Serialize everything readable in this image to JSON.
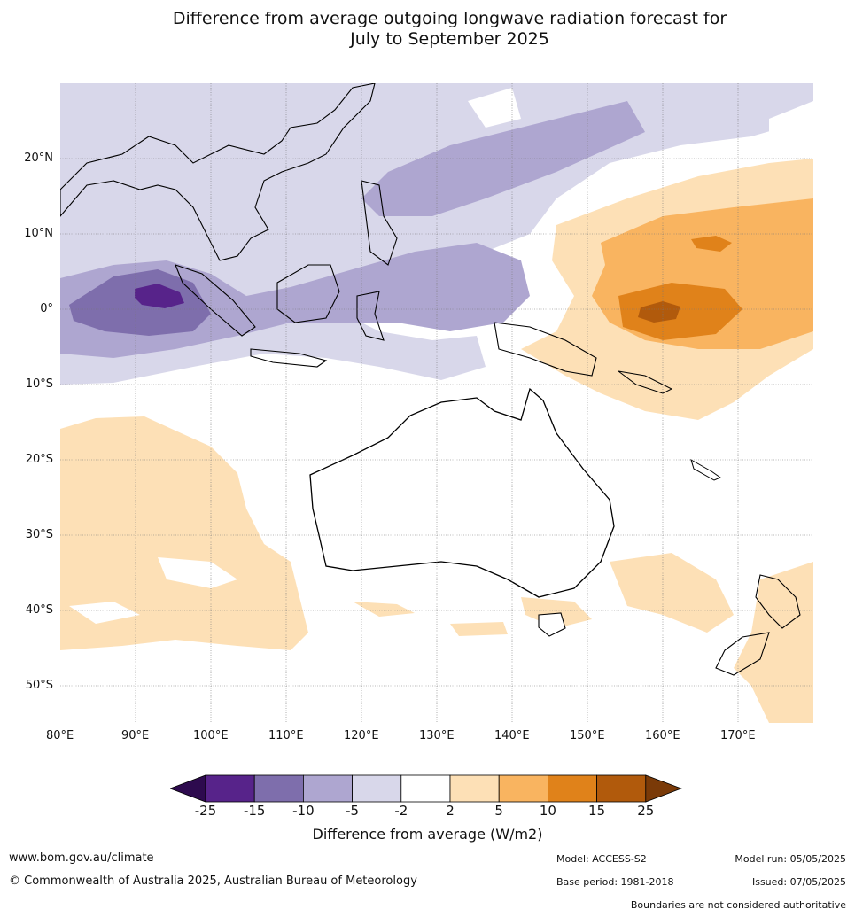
{
  "title_line1": "Difference from average outgoing longwave radiation forecast for",
  "title_line2": "July to September 2025",
  "lat_labels": [
    "20°N",
    "10°N",
    "0°",
    "10°S",
    "20°S",
    "30°S",
    "40°S",
    "50°S"
  ],
  "lon_labels": [
    "80°E",
    "90°E",
    "100°E",
    "110°E",
    "120°E",
    "130°E",
    "140°E",
    "150°E",
    "160°E",
    "170°E"
  ],
  "colorbar": {
    "ticks": [
      "-25",
      "-15",
      "-10",
      "-5",
      "-2",
      "2",
      "5",
      "10",
      "15",
      "25"
    ],
    "colors": [
      "#2d0a4e",
      "#57238a",
      "#7e6eac",
      "#aea6d0",
      "#d8d7ea",
      "#ffffff",
      "#fde0b6",
      "#f9b460",
      "#e0821a",
      "#b15a0c",
      "#7a3a08"
    ],
    "label": "Difference from average (W/m2)"
  },
  "footer": {
    "website": "www.bom.gov.au/climate",
    "copyright": "© Commonwealth of Australia 2025, Australian Bureau of Meteorology",
    "model": "Model: ACCESS-S2",
    "model_run": "Model run: 05/05/2025",
    "base_period": "Base period: 1981-2018",
    "issued": "Issued: 07/05/2025",
    "disclaimer": "Boundaries are not considered authoritative"
  }
}
